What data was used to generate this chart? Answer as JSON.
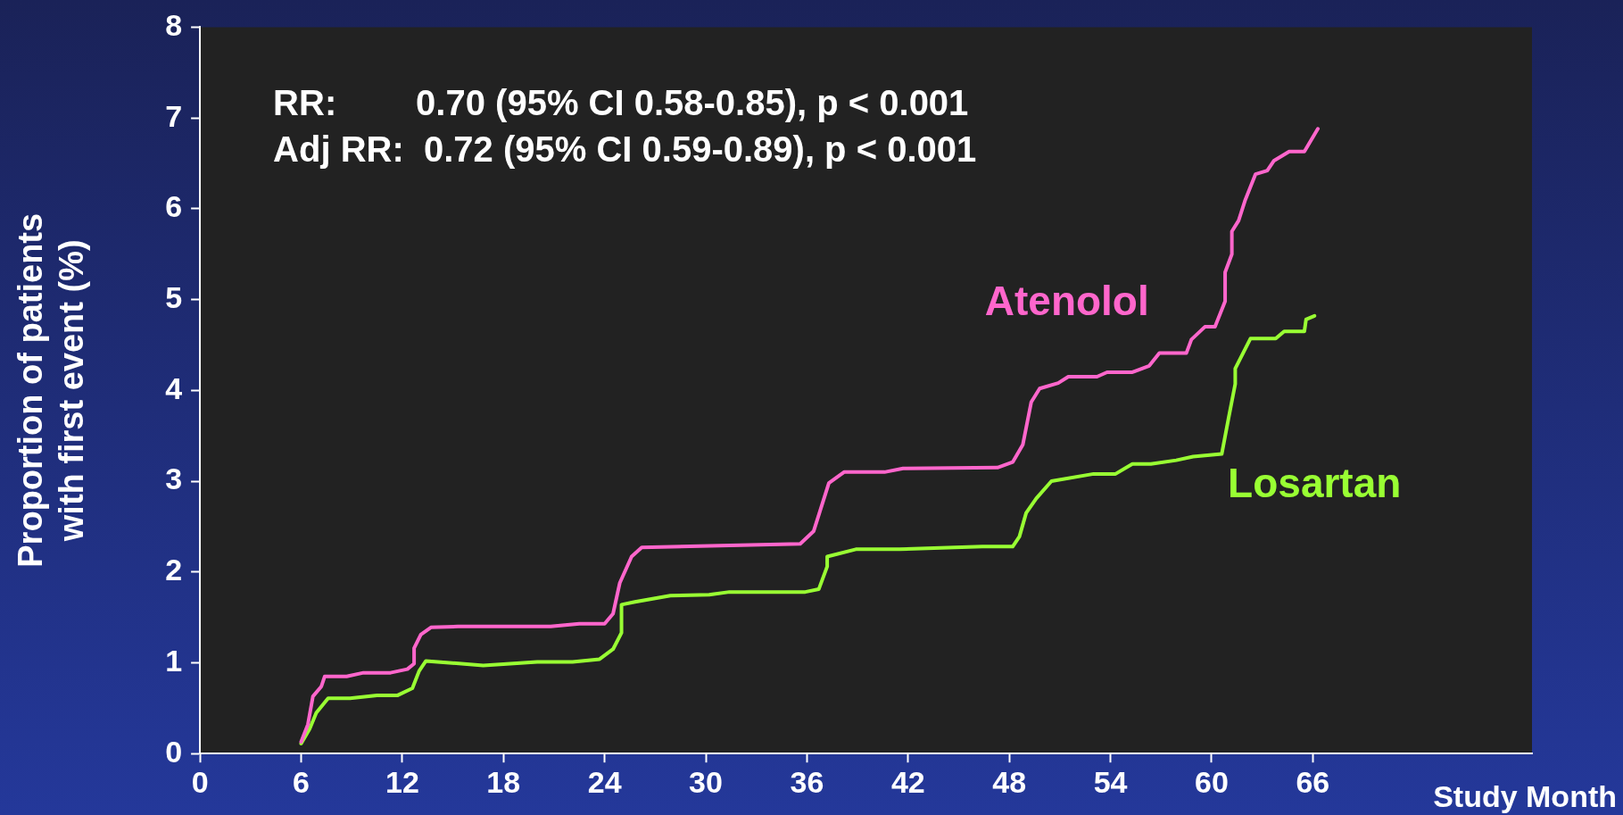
{
  "chart_data": {
    "type": "line",
    "xlabel": "Study Month",
    "ylabel": "Proportion of patients\nwith first event (%)",
    "annotations": [
      "RR:        0.70 (95% CI 0.58-0.85), p < 0.001",
      "Adj RR:  0.72 (95% CI 0.59-0.89), p < 0.001"
    ],
    "xlim": [
      0,
      79
    ],
    "xticks": [
      0,
      6,
      12,
      18,
      24,
      30,
      36,
      42,
      48,
      54,
      60,
      66
    ],
    "ylim": [
      0,
      8
    ],
    "yticks": [
      0,
      1,
      2,
      3,
      4,
      5,
      6,
      7,
      8
    ],
    "grid": false,
    "legend": false,
    "marker": "none",
    "line_style": "solid",
    "series": [
      {
        "name": "Atenolol",
        "color": "#ff66cc",
        "x": [
          6,
          6.4,
          6.7,
          7.2,
          7.4,
          8.7,
          9.7,
          11.3,
          12.3,
          12.7,
          12.7,
          13.1,
          13.7,
          15.3,
          20.8,
          22.5,
          24.0,
          24.5,
          24.9,
          25.6,
          26.2,
          35.6,
          36.4,
          37.3,
          38.2,
          40.6,
          41.7,
          47.3,
          48.2,
          48.8,
          49.3,
          49.8,
          50.9,
          51.5,
          53.2,
          53.8,
          55.3,
          56.3,
          56.9,
          58.5,
          58.8,
          59.6,
          60.2,
          60.8,
          60.8,
          61.2,
          61.2,
          61.6,
          62.0,
          62.6,
          63.3,
          63.7,
          64.6,
          65.5,
          66.3
        ],
        "values": [
          0.13,
          0.32,
          0.63,
          0.74,
          0.85,
          0.85,
          0.89,
          0.89,
          0.93,
          0.99,
          1.16,
          1.31,
          1.39,
          1.4,
          1.4,
          1.43,
          1.43,
          1.54,
          1.88,
          2.17,
          2.27,
          2.31,
          2.45,
          2.98,
          3.1,
          3.1,
          3.14,
          3.15,
          3.21,
          3.4,
          3.87,
          4.02,
          4.08,
          4.15,
          4.15,
          4.2,
          4.2,
          4.27,
          4.41,
          4.41,
          4.56,
          4.7,
          4.7,
          4.98,
          5.3,
          5.5,
          5.75,
          5.87,
          6.1,
          6.38,
          6.42,
          6.53,
          6.63,
          6.63,
          6.88
        ]
      },
      {
        "name": "Losartan",
        "color": "#99ff33",
        "x": [
          6,
          6.5,
          6.9,
          7.6,
          8.9,
          10.5,
          11.7,
          12.6,
          13.0,
          13.4,
          16.8,
          20.0,
          22.1,
          23.7,
          24.5,
          25.0,
          25.0,
          25.8,
          27.9,
          30.2,
          31.4,
          35.9,
          36.7,
          37.2,
          37.2,
          38.9,
          41.5,
          46.4,
          48.2,
          48.6,
          49.0,
          49.6,
          50.5,
          53.0,
          54.3,
          55.3,
          56.4,
          57.9,
          58.9,
          60.6,
          61.0,
          61.4,
          61.4,
          62.3,
          63.8,
          64.3,
          65.5,
          65.6,
          66.1
        ],
        "values": [
          0.11,
          0.27,
          0.45,
          0.61,
          0.61,
          0.64,
          0.64,
          0.72,
          0.91,
          1.02,
          0.97,
          1.01,
          1.01,
          1.04,
          1.15,
          1.33,
          1.64,
          1.67,
          1.74,
          1.75,
          1.78,
          1.78,
          1.81,
          2.06,
          2.17,
          2.25,
          2.25,
          2.28,
          2.28,
          2.39,
          2.65,
          2.81,
          3.0,
          3.08,
          3.08,
          3.19,
          3.19,
          3.23,
          3.27,
          3.3,
          3.69,
          4.07,
          4.24,
          4.57,
          4.57,
          4.65,
          4.65,
          4.78,
          4.82
        ]
      }
    ]
  }
}
